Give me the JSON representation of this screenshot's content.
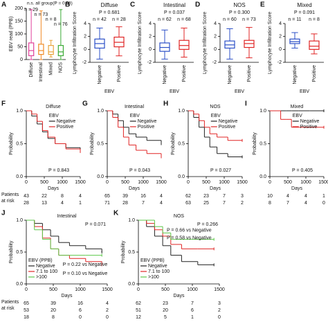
{
  "chart_data": [
    {
      "type": "box",
      "label": "A",
      "note": "n.s. all group(P = 0.93)",
      "ylabel": "EBV read  (PPB)",
      "ylim": [
        0,
        200
      ],
      "yticks": [
        0,
        50,
        100,
        150,
        200
      ],
      "categories": [
        "Diffuse",
        "Intestinal",
        "Mixed",
        "NOS"
      ],
      "n_labels": [
        "n = 29",
        "n = 73",
        "n = 8",
        "n = 76"
      ],
      "boxes": [
        {
          "color": "#e0409a",
          "min": 0,
          "q1": 15,
          "median": 35,
          "q3": 65,
          "max": 195
        },
        {
          "color": "#f08a24",
          "min": 0,
          "q1": 20,
          "median": 35,
          "q3": 60,
          "max": 190
        },
        {
          "color": "#e8a33a",
          "min": 10,
          "q1": 20,
          "median": 30,
          "q3": 55,
          "max": 75
        },
        {
          "color": "#3aaa35",
          "min": 0,
          "q1": 15,
          "median": 30,
          "q3": 55,
          "max": 195
        }
      ]
    },
    {
      "type": "box",
      "label": "B",
      "title": "Diffuse",
      "p_label": "P = 0.681",
      "ylabel": "Lymphocyte Infiltration Score",
      "xlabel": "EBV",
      "ylim": [
        -2,
        4
      ],
      "yticks": [
        -2,
        0,
        2,
        4
      ],
      "categories": [
        "Negative",
        "Positive"
      ],
      "n_labels": [
        "n = 42",
        "n = 28"
      ],
      "boxes": [
        {
          "color": "#2b4fc7",
          "min": -1.5,
          "q1": 0.2,
          "median": 0.9,
          "q3": 1.6,
          "max": 3.3
        },
        {
          "color": "#e02424",
          "min": -1,
          "q1": 0.4,
          "median": 1.1,
          "q3": 1.9,
          "max": 3.5
        }
      ]
    },
    {
      "type": "box",
      "label": "C",
      "title": "Intestinal",
      "p_label": "P = 0.037",
      "ylabel": "Lymphocyte Infiltration Score",
      "xlabel": "EBV",
      "ylim": [
        -2,
        4
      ],
      "yticks": [
        -2,
        0,
        2,
        4
      ],
      "categories": [
        "Negative",
        "Positive"
      ],
      "n_labels": [
        "n = 62",
        "n = 68"
      ],
      "boxes": [
        {
          "color": "#2b4fc7",
          "min": -1.5,
          "q1": -0.3,
          "median": 0.3,
          "q3": 1,
          "max": 3
        },
        {
          "color": "#e02424",
          "min": -1.2,
          "q1": 0,
          "median": 0.6,
          "q3": 1.4,
          "max": 3.3
        }
      ]
    },
    {
      "type": "box",
      "label": "D",
      "title": "NOS",
      "p_label": "P = 0.300",
      "ylabel": "Lymphocyte Infiltration Score",
      "xlabel": "EBV",
      "ylim": [
        -2,
        4
      ],
      "yticks": [
        -2,
        0,
        2,
        4
      ],
      "categories": [
        "Negative",
        "Positive"
      ],
      "n_labels": [
        "n = 60",
        "n = 73"
      ],
      "boxes": [
        {
          "color": "#2b4fc7",
          "min": -1.5,
          "q1": 0.2,
          "median": 0.7,
          "q3": 1.3,
          "max": 3.2
        },
        {
          "color": "#e02424",
          "min": -1.3,
          "q1": 0.3,
          "median": 0.9,
          "q3": 1.4,
          "max": 3.4
        }
      ]
    },
    {
      "type": "box",
      "label": "E",
      "title": "Mixed",
      "p_label": "P = 0.091",
      "ylabel": "Lymphocyte Infiltration Score",
      "xlabel": "EBV",
      "ylim": [
        -2,
        4
      ],
      "yticks": [
        -2,
        0,
        2,
        4
      ],
      "categories": [
        "Negative",
        "Positive"
      ],
      "n_labels": [
        "n = 11",
        "n = 8"
      ],
      "boxes": [
        {
          "color": "#2b4fc7",
          "min": 0.2,
          "q1": 0.9,
          "median": 1.2,
          "q3": 1.6,
          "max": 2.6
        },
        {
          "color": "#e02424",
          "min": -0.7,
          "q1": 0,
          "median": 0.5,
          "q3": 1.3,
          "max": 2.4
        }
      ]
    },
    {
      "type": "km",
      "label": "F",
      "title": "Diffuse",
      "legend_title": "EBV",
      "legend": "upper right",
      "p_label": "P = 0.843",
      "xlabel": "Days",
      "ylabel": "Probability",
      "xlim": [
        0,
        1500
      ],
      "xticks": [
        0,
        500,
        1000,
        1500
      ],
      "ylim": [
        0,
        1
      ],
      "yticks": [
        {
          "value": 0,
          "label": "0.0"
        },
        {
          "value": 0.5,
          "label": "0.5"
        },
        {
          "value": 1,
          "label": "1.0"
        }
      ],
      "risk_label": [
        "Patients",
        "at risk"
      ],
      "x": [
        0,
        150,
        300,
        450,
        600,
        800,
        1100,
        1500
      ],
      "series": [
        {
          "name": "Negative",
          "color": "#222222",
          "values": [
            1,
            0.92,
            0.8,
            0.68,
            0.58,
            0.5,
            0.44,
            0.4
          ],
          "at_risk": [
            43,
            22,
            8,
            4
          ]
        },
        {
          "name": "Positive",
          "color": "#e02424",
          "values": [
            1,
            0.95,
            0.84,
            0.7,
            0.6,
            0.5,
            0.42,
            0.38
          ],
          "at_risk": [
            28,
            13,
            4,
            1
          ]
        }
      ]
    },
    {
      "type": "km",
      "label": "G",
      "title": "Intestinal",
      "legend_title": "EBV",
      "legend": "upper right",
      "p_label": "P = 0.043",
      "xlabel": "Days",
      "ylabel": "Probability",
      "xlim": [
        0,
        1500
      ],
      "xticks": [
        0,
        500,
        1000,
        1500
      ],
      "ylim": [
        0,
        1
      ],
      "yticks": [
        {
          "value": 0,
          "label": "0.0"
        },
        {
          "value": 0.5,
          "label": "0.5"
        },
        {
          "value": 1,
          "label": "1.0"
        }
      ],
      "x": [
        0,
        150,
        300,
        450,
        600,
        800,
        1100,
        1500
      ],
      "series": [
        {
          "name": "Negative",
          "color": "#222222",
          "values": [
            1,
            0.95,
            0.85,
            0.75,
            0.65,
            0.6,
            0.55,
            0.5
          ],
          "at_risk": [
            65,
            39,
            16,
            4
          ]
        },
        {
          "name": "Positive",
          "color": "#e02424",
          "values": [
            1,
            0.9,
            0.75,
            0.6,
            0.48,
            0.4,
            0.35,
            0.3
          ],
          "at_risk": [
            71,
            28,
            7,
            4
          ]
        }
      ]
    },
    {
      "type": "km",
      "label": "H",
      "title": "NOS",
      "legend_title": "EBV",
      "legend": "upper right",
      "p_label": "P = 0.027",
      "xlabel": "Days",
      "ylabel": "Probability",
      "xlim": [
        0,
        1500
      ],
      "xticks": [
        0,
        500,
        1000,
        1500
      ],
      "ylim": [
        0,
        1
      ],
      "yticks": [
        {
          "value": 0,
          "label": "0.0"
        },
        {
          "value": 0.5,
          "label": "0.5"
        },
        {
          "value": 1,
          "label": "1.0"
        }
      ],
      "x": [
        0,
        150,
        300,
        450,
        600,
        800,
        1100,
        1500
      ],
      "series": [
        {
          "name": "Negative",
          "color": "#222222",
          "values": [
            1,
            0.9,
            0.75,
            0.6,
            0.45,
            0.35,
            0.3,
            0.3
          ],
          "at_risk": [
            62,
            23,
            7,
            3
          ]
        },
        {
          "name": "Positive",
          "color": "#e02424",
          "values": [
            1,
            0.95,
            0.85,
            0.75,
            0.65,
            0.6,
            0.55,
            0.55
          ],
          "at_risk": [
            63,
            25,
            7,
            2
          ]
        }
      ]
    },
    {
      "type": "km",
      "label": "I",
      "title": "Mixed",
      "legend_title": "EBV",
      "legend": "upper right",
      "p_label": "P = 0.405",
      "xlabel": "Days",
      "ylabel": "Probability",
      "xlim": [
        0,
        1500
      ],
      "xticks": [
        0,
        500,
        1000,
        1500
      ],
      "ylim": [
        0,
        1
      ],
      "yticks": [
        {
          "value": 0,
          "label": "0.0"
        },
        {
          "value": 0.5,
          "label": "0.5"
        },
        {
          "value": 1,
          "label": "1.0"
        }
      ],
      "x": [
        0,
        150,
        300,
        450,
        600,
        800,
        1100,
        1500
      ],
      "series": [
        {
          "name": "Negative",
          "color": "#222222",
          "values": [
            1,
            1,
            1,
            1,
            1,
            1,
            1,
            1
          ],
          "at_risk": [
            10,
            4,
            4,
            1
          ]
        },
        {
          "name": "Positive",
          "color": "#e02424",
          "values": [
            1,
            1,
            0.87,
            0.87,
            0.75,
            0.75,
            0.75,
            0.75
          ],
          "at_risk": [
            8,
            7,
            4,
            0
          ]
        }
      ]
    },
    {
      "type": "km",
      "label": "J",
      "title": "Intestinal",
      "legend_title": "EBV (PPB)",
      "legend": "lower left",
      "p_label": "P = 0.071",
      "xlabel": "Days",
      "ylabel": "Probability",
      "xlim": [
        0,
        1500
      ],
      "xticks": [
        0,
        500,
        1000,
        1500
      ],
      "ylim": [
        0,
        1
      ],
      "yticks": [
        {
          "value": 0,
          "label": "0.0"
        },
        {
          "value": 0.5,
          "label": "0.5"
        },
        {
          "value": 1,
          "label": "1.0"
        }
      ],
      "risk_label": [
        "Patients",
        "at risk"
      ],
      "notes": [
        {
          "text": "P = 0.22 vs Negative",
          "color": "#e02424"
        },
        {
          "text": "P = 0.10 vs Negative",
          "color": "#3aaa35"
        }
      ],
      "x": [
        0,
        150,
        300,
        450,
        600,
        800,
        1100,
        1400
      ],
      "series": [
        {
          "name": "Negative",
          "color": "#222222",
          "values": [
            1,
            0.95,
            0.85,
            0.75,
            0.65,
            0.6,
            0.55,
            0.5
          ],
          "at_risk": [
            65,
            39,
            16,
            4
          ]
        },
        {
          "name": "7.1 to 100",
          "color": "#e02424",
          "values": [
            1,
            0.9,
            0.72,
            0.55,
            0.45,
            0.4,
            0.35,
            0.3
          ],
          "at_risk": [
            53,
            20,
            6,
            2
          ]
        },
        {
          "name": ">100",
          "color": "#5cc84a",
          "values": [
            1,
            0.85,
            0.7,
            0.55,
            0.45,
            0.45,
            0.45,
            0.45
          ],
          "at_risk": [
            18,
            8,
            0,
            0
          ]
        }
      ]
    },
    {
      "type": "km",
      "label": "K",
      "title": "NOS",
      "legend_title": "EBV (PPB)",
      "legend": "lower left",
      "p_label": "P = 0.266",
      "xlabel": "Days",
      "ylabel": "Probability",
      "xlim": [
        0,
        1500
      ],
      "xticks": [
        0,
        500,
        1000,
        1500
      ],
      "ylim": [
        0,
        1
      ],
      "yticks": [
        {
          "value": 0,
          "label": "0.0"
        },
        {
          "value": 0.5,
          "label": "0.5"
        },
        {
          "value": 1,
          "label": "1.0"
        }
      ],
      "notes": [
        {
          "text": "P = 0.66 vs Negative",
          "color": "#3aaa35"
        },
        {
          "text": "P = 0.58 vs Negative",
          "color": "#e02424"
        }
      ],
      "x": [
        0,
        150,
        300,
        450,
        600,
        800,
        1100,
        1400
      ],
      "series": [
        {
          "name": "Negative",
          "color": "#222222",
          "values": [
            1,
            0.9,
            0.75,
            0.6,
            0.45,
            0.35,
            0.3,
            0.3
          ],
          "at_risk": [
            62,
            23,
            7,
            3
          ]
        },
        {
          "name": "7.1 to 100",
          "color": "#e02424",
          "values": [
            1,
            0.95,
            0.85,
            0.75,
            0.62,
            0.55,
            0.55,
            0.55
          ],
          "at_risk": [
            51,
            20,
            6,
            2
          ]
        },
        {
          "name": ">100",
          "color": "#5cc84a",
          "values": [
            1,
            1,
            0.9,
            0.8,
            0.7,
            0.7,
            0.7,
            0.7
          ],
          "at_risk": [
            12,
            5,
            1,
            0
          ]
        }
      ]
    }
  ]
}
